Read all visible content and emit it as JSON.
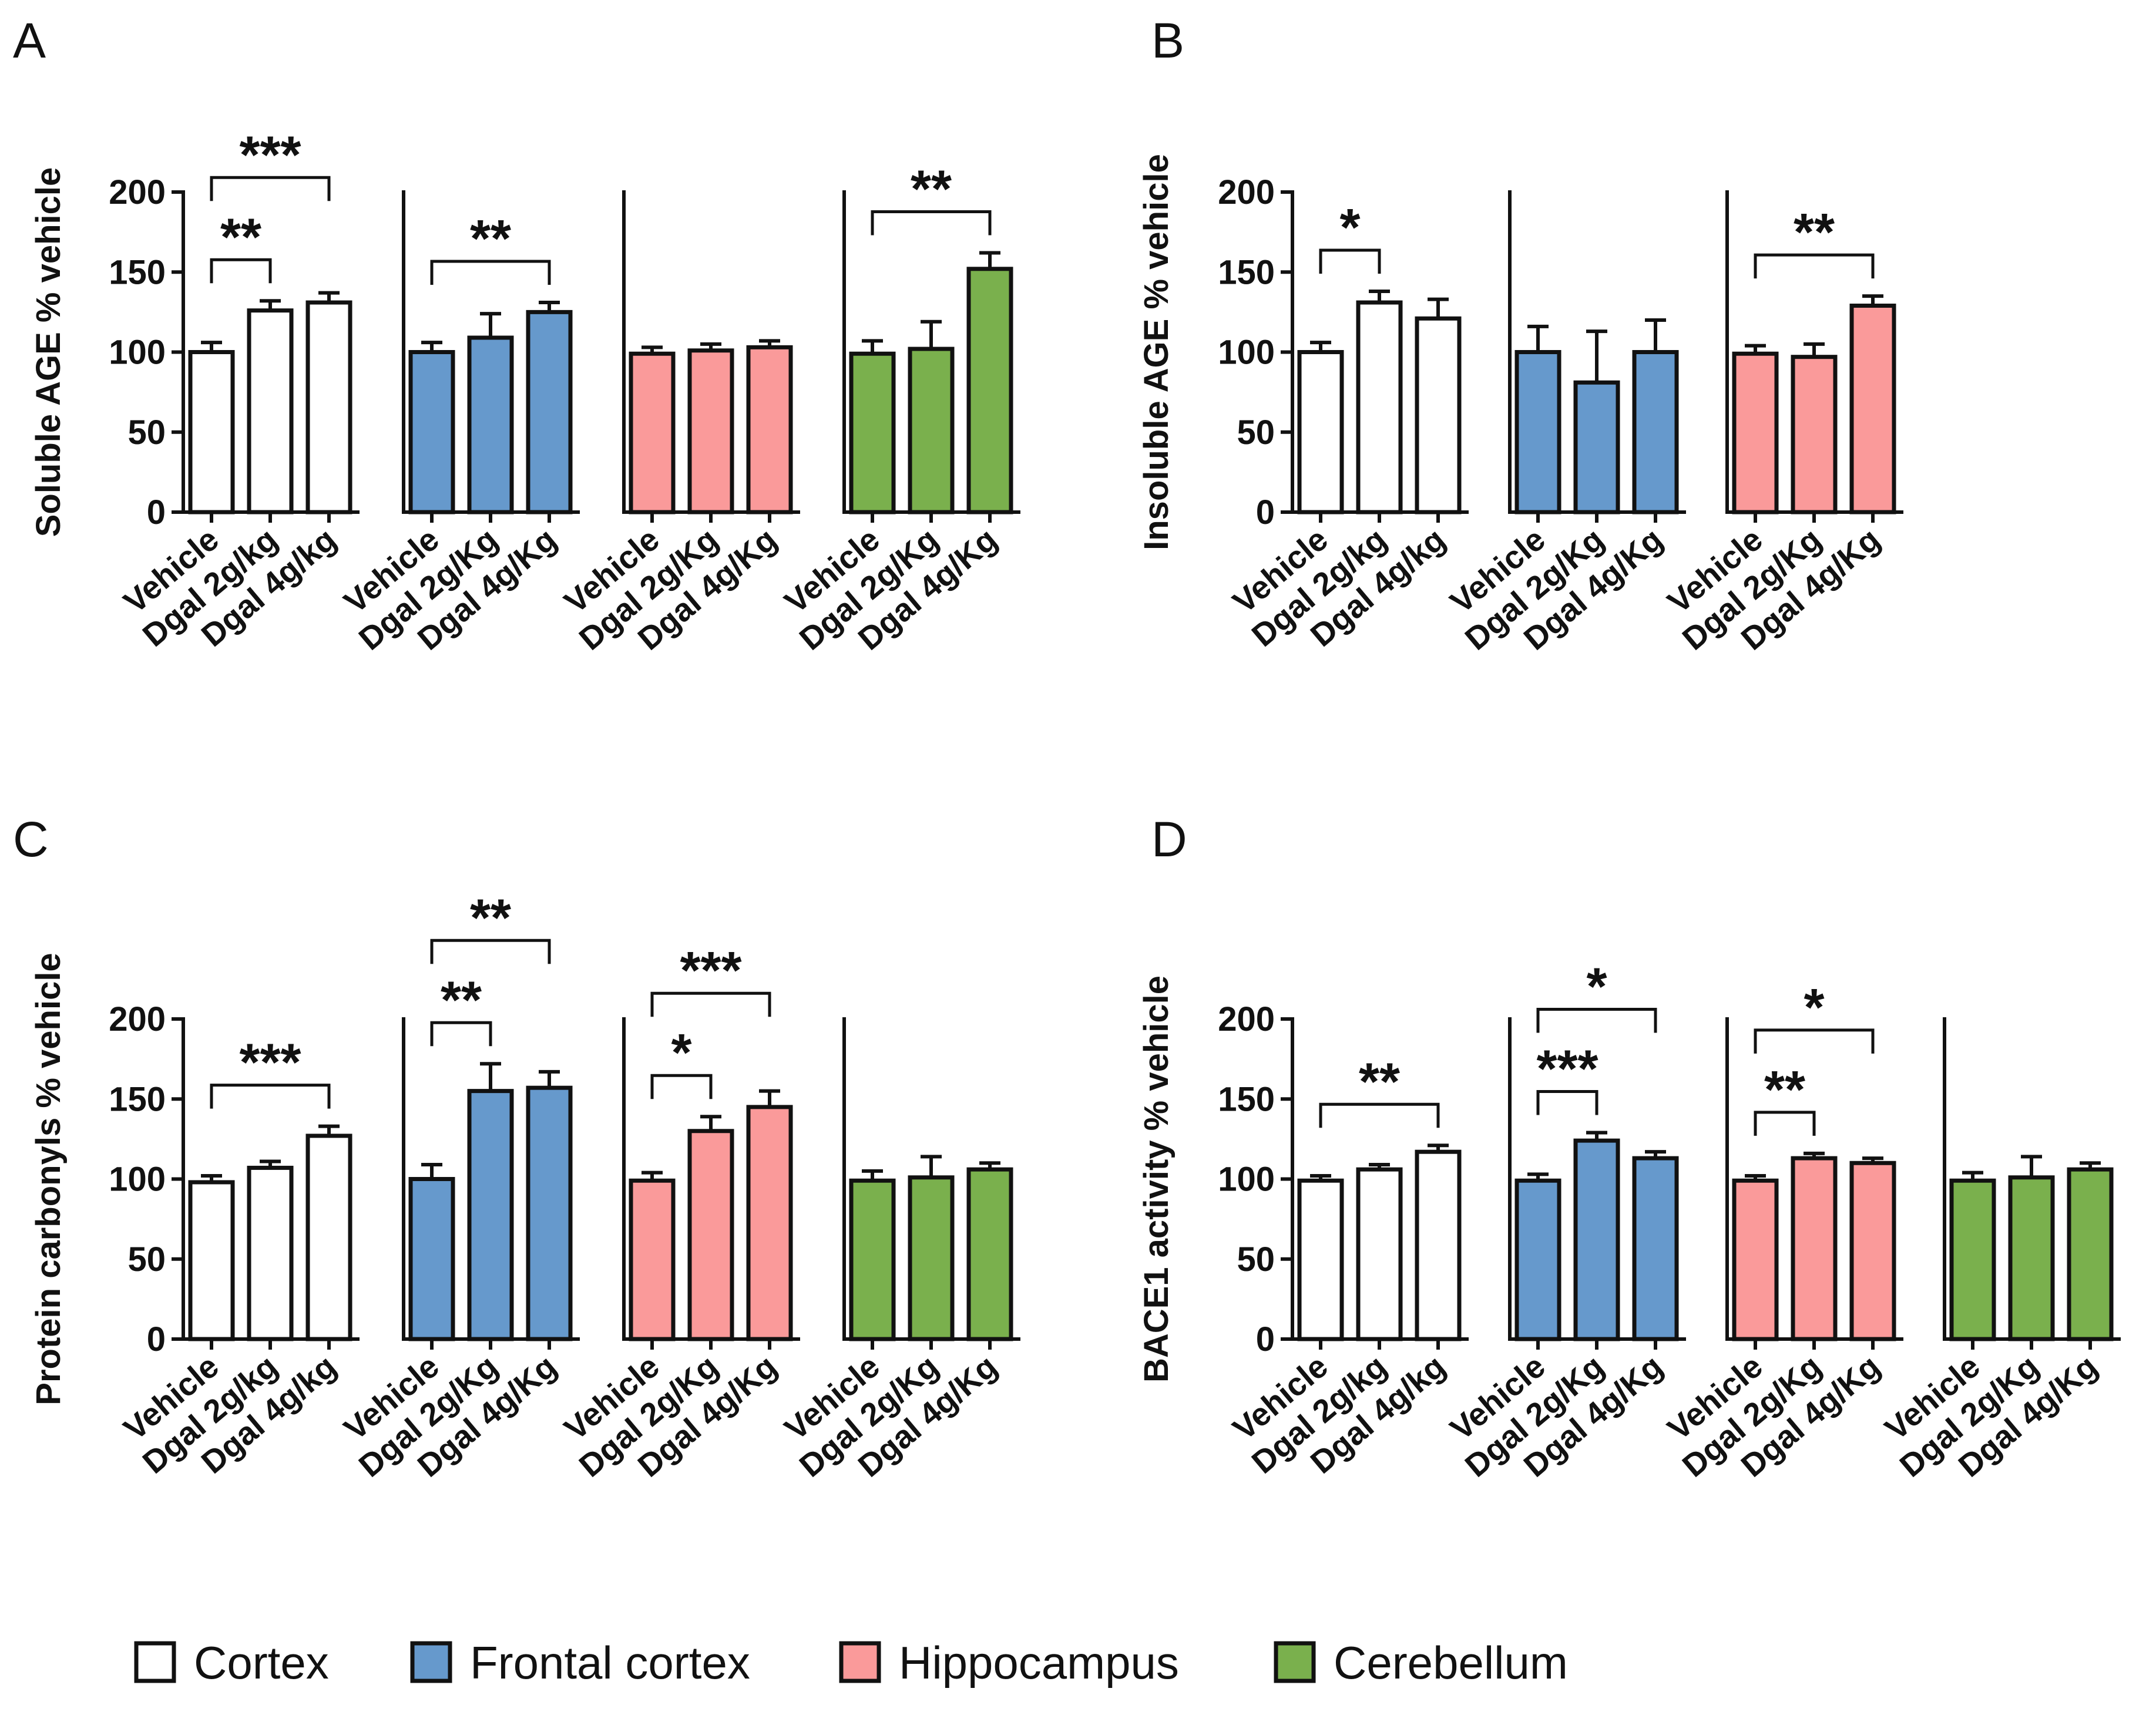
{
  "colors": {
    "Cortex": "#ffffff",
    "Frontal cortex": "#6699cc",
    "Hippocampus": "#fa9a9a",
    "Cerebellum": "#7ab04d"
  },
  "legend": [
    {
      "label": "Cortex",
      "color": "#ffffff"
    },
    {
      "label": "Frontal cortex",
      "color": "#6699cc"
    },
    {
      "label": "Hippocampus",
      "color": "#fa9a9a"
    },
    {
      "label": "Cerebellum",
      "color": "#7ab04d"
    }
  ],
  "chart_data": [
    {
      "panel": "A",
      "type": "bar",
      "ylabel": "Soluble AGE % vehicle",
      "ylim": [
        0,
        200
      ],
      "yticks": [
        "0",
        "50",
        "100",
        "150",
        "200"
      ],
      "groups": [
        {
          "region": "Cortex",
          "categories": [
            "Vehicle",
            "Dgal 2g/kg",
            "Dgal 4g/kg"
          ],
          "values": [
            100,
            126,
            131
          ],
          "errors": [
            6,
            6,
            6
          ],
          "significance": [
            {
              "from": 0,
              "to": 1,
              "label": "**"
            },
            {
              "from": 0,
              "to": 2,
              "label": "***"
            }
          ]
        },
        {
          "region": "Frontal cortex",
          "categories": [
            "Vehicle",
            "Dgal 2g/Kg",
            "Dgal 4g/Kg"
          ],
          "values": [
            100,
            109,
            125
          ],
          "errors": [
            6,
            15,
            6
          ],
          "significance": [
            {
              "from": 0,
              "to": 2,
              "label": "**"
            }
          ]
        },
        {
          "region": "Hippocampus",
          "categories": [
            "Vehicle",
            "Dgal 2g/Kg",
            "Dgal 4g/Kg"
          ],
          "values": [
            99,
            101,
            103
          ],
          "errors": [
            4,
            4,
            4
          ],
          "significance": []
        },
        {
          "region": "Cerebellum",
          "categories": [
            "Vehicle",
            "Dgal 2g/Kg",
            "Dgal 4g/Kg"
          ],
          "values": [
            99,
            102,
            152
          ],
          "errors": [
            8,
            17,
            10
          ],
          "significance": [
            {
              "from": 0,
              "to": 2,
              "label": "**"
            }
          ]
        }
      ]
    },
    {
      "panel": "B",
      "type": "bar",
      "ylabel": "Insoluble AGE % vehicle",
      "ylim": [
        0,
        200
      ],
      "yticks": [
        "0",
        "50",
        "100",
        "150",
        "200"
      ],
      "groups": [
        {
          "region": "Cortex",
          "categories": [
            "Vehicle",
            "Dgal 2g/kg",
            "Dgal 4g/kg"
          ],
          "values": [
            100,
            131,
            121
          ],
          "errors": [
            6,
            7,
            12
          ],
          "significance": [
            {
              "from": 0,
              "to": 1,
              "label": "*"
            }
          ]
        },
        {
          "region": "Frontal cortex",
          "categories": [
            "Vehicle",
            "Dgal 2g/Kg",
            "Dgal 4g/Kg"
          ],
          "values": [
            100,
            81,
            100
          ],
          "errors": [
            16,
            32,
            20
          ],
          "significance": []
        },
        {
          "region": "Hippocampus",
          "categories": [
            "Vehicle",
            "Dgal 2g/Kg",
            "Dgal 4g/Kg"
          ],
          "values": [
            99,
            97,
            129
          ],
          "errors": [
            5,
            8,
            6
          ],
          "significance": [
            {
              "from": 0,
              "to": 2,
              "label": "**"
            }
          ]
        }
      ]
    },
    {
      "panel": "C",
      "type": "bar",
      "ylabel": "Protein carbonyls % vehicle",
      "ylim": [
        0,
        200
      ],
      "yticks": [
        "0",
        "50",
        "100",
        "150",
        "200"
      ],
      "groups": [
        {
          "region": "Cortex",
          "categories": [
            "Vehicle",
            "Dgal 2g/kg",
            "Dgal 4g/kg"
          ],
          "values": [
            98,
            107,
            127
          ],
          "errors": [
            4,
            4,
            6
          ],
          "significance": [
            {
              "from": 0,
              "to": 2,
              "label": "***"
            }
          ]
        },
        {
          "region": "Frontal cortex",
          "categories": [
            "Vehicle",
            "Dgal 2g/Kg",
            "Dgal 4g/Kg"
          ],
          "values": [
            100,
            155,
            157
          ],
          "errors": [
            9,
            17,
            10
          ],
          "significance": [
            {
              "from": 0,
              "to": 1,
              "label": "**"
            },
            {
              "from": 0,
              "to": 2,
              "label": "**"
            }
          ]
        },
        {
          "region": "Hippocampus",
          "categories": [
            "Vehicle",
            "Dgal 2g/Kg",
            "Dgal 4g/Kg"
          ],
          "values": [
            99,
            130,
            145
          ],
          "errors": [
            5,
            9,
            10
          ],
          "significance": [
            {
              "from": 0,
              "to": 1,
              "label": "*"
            },
            {
              "from": 0,
              "to": 2,
              "label": "***"
            }
          ]
        },
        {
          "region": "Cerebellum",
          "categories": [
            "Vehicle",
            "Dgal 2g/Kg",
            "Dgal 4g/Kg"
          ],
          "values": [
            99,
            101,
            106
          ],
          "errors": [
            6,
            13,
            4
          ],
          "significance": []
        }
      ]
    },
    {
      "panel": "D",
      "type": "bar",
      "ylabel": "BACE1 activity % vehicle",
      "ylim": [
        0,
        200
      ],
      "yticks": [
        "0",
        "50",
        "100",
        "150",
        "200"
      ],
      "groups": [
        {
          "region": "Cortex",
          "categories": [
            "Vehicle",
            "Dgal 2g/kg",
            "Dgal 4g/kg"
          ],
          "values": [
            99,
            106,
            117
          ],
          "errors": [
            3,
            3,
            4
          ],
          "significance": [
            {
              "from": 0,
              "to": 2,
              "label": "**"
            }
          ]
        },
        {
          "region": "Frontal cortex",
          "categories": [
            "Vehicle",
            "Dgal 2g/Kg",
            "Dgal 4g/Kg"
          ],
          "values": [
            99,
            124,
            113
          ],
          "errors": [
            4,
            5,
            4
          ],
          "significance": [
            {
              "from": 0,
              "to": 1,
              "label": "***"
            },
            {
              "from": 0,
              "to": 2,
              "label": "*"
            }
          ]
        },
        {
          "region": "Hippocampus",
          "categories": [
            "Vehicle",
            "Dgal 2g/Kg",
            "Dgal 4g/Kg"
          ],
          "values": [
            99,
            113,
            110
          ],
          "errors": [
            3,
            3,
            3
          ],
          "significance": [
            {
              "from": 0,
              "to": 1,
              "label": "**"
            },
            {
              "from": 0,
              "to": 2,
              "label": "*"
            }
          ]
        },
        {
          "region": "Cerebellum",
          "categories": [
            "Vehicle",
            "Dgal 2g/Kg",
            "Dgal 4g/Kg"
          ],
          "values": [
            99,
            101,
            106
          ],
          "errors": [
            5,
            13,
            4
          ],
          "significance": []
        }
      ]
    }
  ]
}
